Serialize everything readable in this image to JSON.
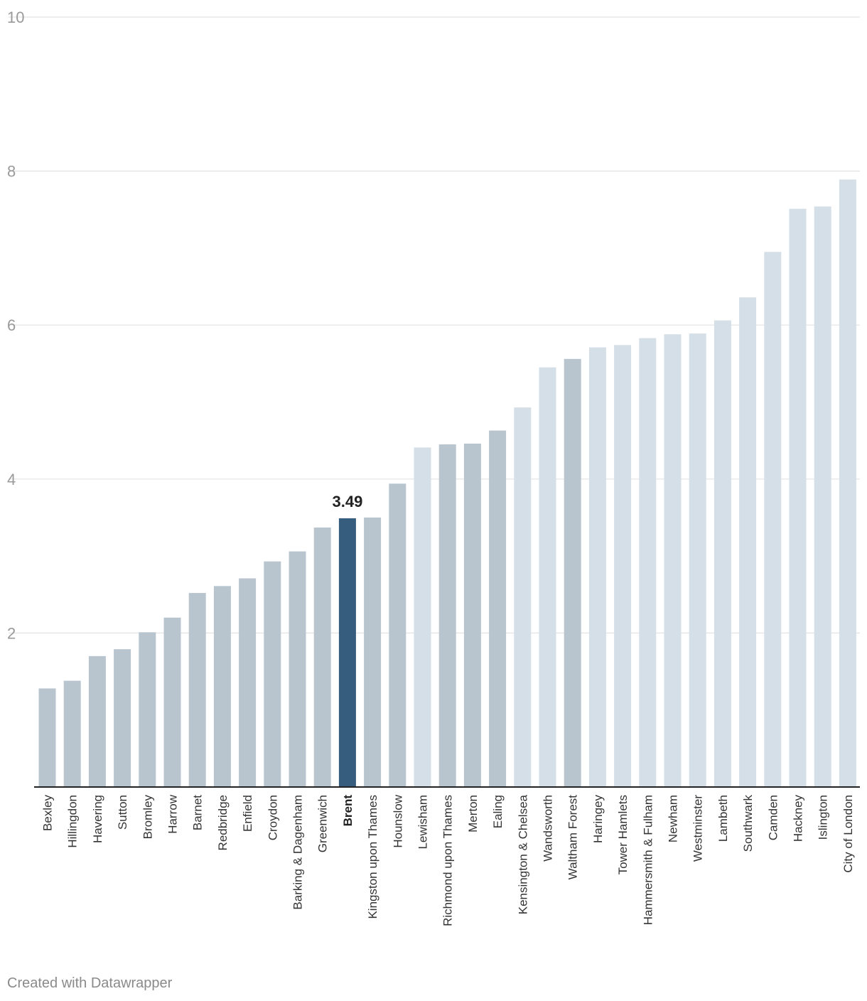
{
  "chart_data": {
    "type": "bar",
    "title": "",
    "xlabel": "",
    "ylabel": "",
    "ylim": [
      0,
      10
    ],
    "yticks": [
      2,
      4,
      6,
      8,
      10
    ],
    "grid": true,
    "categories": [
      "Bexley",
      "Hillingdon",
      "Havering",
      "Sutton",
      "Bromley",
      "Harrow",
      "Barnet",
      "Redbridge",
      "Enfield",
      "Croydon",
      "Barking & Dagenham",
      "Greenwich",
      "Brent",
      "Kingston upon Thames",
      "Hounslow",
      "Lewisham",
      "Richmond upon Thames",
      "Merton",
      "Ealing",
      "Kensington & Chelsea",
      "Wandsworth",
      "Waltham Forest",
      "Haringey",
      "Tower Hamlets",
      "Hammersmith & Fulham",
      "Newham",
      "Westminster",
      "Lambeth",
      "Southwark",
      "Camden",
      "Hackney",
      "Islington",
      "City of London"
    ],
    "values": [
      1.28,
      1.38,
      1.7,
      1.79,
      2.01,
      2.2,
      2.52,
      2.61,
      2.71,
      2.93,
      3.06,
      3.37,
      3.49,
      3.5,
      3.94,
      4.41,
      4.45,
      4.46,
      4.63,
      4.93,
      5.45,
      5.56,
      5.71,
      5.74,
      5.83,
      5.88,
      5.89,
      6.06,
      6.36,
      6.95,
      7.51,
      7.54,
      7.89
    ],
    "bar_colors": [
      "#b8c5cf",
      "#b8c5cf",
      "#b8c5cf",
      "#b8c5cf",
      "#b8c5cf",
      "#b8c5cf",
      "#b8c5cf",
      "#b8c5cf",
      "#b8c5cf",
      "#b8c5cf",
      "#b8c5cf",
      "#b8c5cf",
      "#365c7e",
      "#b8c5cf",
      "#b8c5cf",
      "#d5dfe7",
      "#b8c5cf",
      "#b8c5cf",
      "#b8c5cf",
      "#d5dfe7",
      "#d5dfe7",
      "#b8c5cf",
      "#d5dfe7",
      "#d5dfe7",
      "#d5dfe7",
      "#d5dfe7",
      "#d5dfe7",
      "#d5dfe7",
      "#d5dfe7",
      "#d5dfe7",
      "#d5dfe7",
      "#d5dfe7",
      "#d5dfe7"
    ],
    "highlight": {
      "category": "Brent",
      "label": "3.49"
    }
  },
  "footer": {
    "credit": "Created with Datawrapper"
  }
}
